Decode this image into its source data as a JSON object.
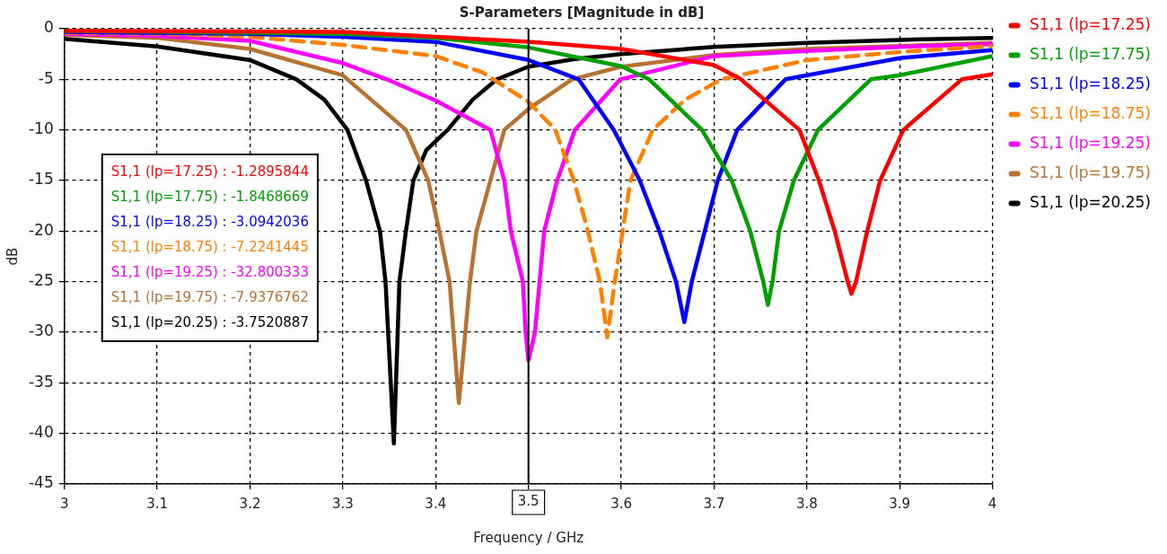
{
  "chart_data": {
    "type": "line",
    "title": "S-Parameters [Magnitude in dB]",
    "xlabel": "Frequency / GHz",
    "ylabel": "dB",
    "xlim": [
      3,
      4
    ],
    "xticks": [
      3,
      3.1,
      3.2,
      3.3,
      3.4,
      3.5,
      3.6,
      3.7,
      3.8,
      3.9,
      4
    ],
    "ylim": [
      -45,
      0
    ],
    "yticks": [
      -45,
      -40,
      -35,
      -30,
      -25,
      -20,
      -15,
      -10,
      -5,
      0
    ],
    "grid": true,
    "legend": "right",
    "marker": "none",
    "ref_lines": [
      {
        "axis": "x",
        "value": 3.5,
        "label": "3.5",
        "color": "#000000"
      }
    ],
    "annotations": [
      "S1,1 (lp=17.25) : -1.2895844",
      "S1,1 (lp=17.75) : -1.8468669",
      "S1,1 (lp=18.25) : -3.0942036",
      "S1,1 (lp=18.75) : -7.2241445",
      "S1,1 (lp=19.25) : -32.800333",
      "S1,1 (lp=19.75) : -7.9376762",
      "S1,1 (lp=20.25) : -3.7520887"
    ],
    "series": [
      {
        "name": "S1,1 (lp=17.25)",
        "color": "#ff0000",
        "line_style": "solid",
        "x": [
          3.0,
          3.3,
          3.5,
          3.6,
          3.7,
          3.729,
          3.792,
          3.813,
          3.83,
          3.844,
          3.848,
          3.853,
          3.865,
          3.879,
          3.904,
          3.967,
          4.0
        ],
        "values": [
          -0.2,
          -0.3,
          -1.29,
          -2.0,
          -3.6,
          -5,
          -10,
          -15,
          -20,
          -25,
          -26.2,
          -25,
          -20,
          -15,
          -10,
          -5,
          -4.5
        ]
      },
      {
        "name": "S1,1 (lp=17.75)",
        "color": "#00a000",
        "line_style": "solid",
        "x": [
          3.0,
          3.3,
          3.4,
          3.5,
          3.6,
          3.63,
          3.687,
          3.719,
          3.739,
          3.753,
          3.758,
          3.763,
          3.77,
          3.786,
          3.812,
          3.869,
          3.9,
          4.0
        ],
        "values": [
          -0.2,
          -0.5,
          -0.9,
          -1.85,
          -3.7,
          -5,
          -10,
          -15,
          -20,
          -25,
          -27.3,
          -25,
          -20,
          -15,
          -10,
          -5,
          -4.6,
          -2.7
        ]
      },
      {
        "name": "S1,1 (lp=18.25)",
        "color": "#0000ff",
        "line_style": "solid",
        "x": [
          3.0,
          3.2,
          3.3,
          3.4,
          3.5,
          3.554,
          3.592,
          3.62,
          3.641,
          3.659,
          3.668,
          3.676,
          3.69,
          3.704,
          3.725,
          3.777,
          3.9,
          4.0
        ],
        "values": [
          -0.3,
          -0.5,
          -0.8,
          -1.3,
          -3.09,
          -5,
          -10,
          -15,
          -20,
          -25,
          -29,
          -25,
          -20,
          -15,
          -10,
          -5,
          -2.9,
          -2.1
        ]
      },
      {
        "name": "S1,1 (lp=18.75)",
        "color": "#ff8000",
        "line_style": "dashed",
        "x": [
          3.0,
          3.1,
          3.2,
          3.3,
          3.4,
          3.45,
          3.5,
          3.529,
          3.549,
          3.564,
          3.577,
          3.585,
          3.593,
          3.61,
          3.634,
          3.669,
          3.708,
          3.8,
          3.9,
          4.0
        ],
        "values": [
          -0.4,
          -0.5,
          -0.8,
          -1.6,
          -2.7,
          -4.3,
          -7.22,
          -10,
          -15,
          -20,
          -25,
          -30.5,
          -25,
          -15,
          -10,
          -7,
          -5,
          -3.1,
          -2.3,
          -1.7
        ]
      },
      {
        "name": "S1,1 (lp=19.25)",
        "color": "#ff00ff",
        "line_style": "solid",
        "x": [
          3.0,
          3.1,
          3.2,
          3.3,
          3.35,
          3.4,
          3.459,
          3.474,
          3.481,
          3.494,
          3.497,
          3.5,
          3.507,
          3.512,
          3.517,
          3.531,
          3.55,
          3.599,
          3.7,
          3.8,
          3.9,
          4.0
        ],
        "values": [
          -0.5,
          -0.7,
          -1.2,
          -3.4,
          -5.1,
          -7.1,
          -10,
          -15,
          -20,
          -25,
          -30,
          -32.8,
          -30,
          -25,
          -20,
          -15,
          -10,
          -5,
          -2.7,
          -2.2,
          -1.8,
          -1.5
        ]
      },
      {
        "name": "S1,1 (lp=19.75)",
        "color": "#b87333",
        "line_style": "solid",
        "x": [
          3.0,
          3.1,
          3.2,
          3.3,
          3.368,
          3.392,
          3.404,
          3.415,
          3.425,
          3.437,
          3.444,
          3.459,
          3.474,
          3.5,
          3.547,
          3.6,
          3.7,
          3.8,
          3.9,
          4.0
        ],
        "values": [
          -0.6,
          -0.9,
          -2.0,
          -4.6,
          -10,
          -15,
          -20,
          -25,
          -37,
          -25,
          -20,
          -15,
          -10,
          -7.94,
          -5,
          -3.75,
          -2.6,
          -2.0,
          -1.7,
          -1.4
        ]
      },
      {
        "name": "S1,1 (lp=20.25)",
        "color": "#000000",
        "line_style": "solid",
        "x": [
          3.0,
          3.1,
          3.2,
          3.25,
          3.28,
          3.305,
          3.325,
          3.34,
          3.346,
          3.355,
          3.361,
          3.368,
          3.376,
          3.39,
          3.413,
          3.44,
          3.466,
          3.5,
          3.55,
          3.6,
          3.7,
          3.8,
          3.9,
          4.0
        ],
        "values": [
          -1.0,
          -1.75,
          -3.1,
          -5,
          -7,
          -10,
          -15,
          -20,
          -25,
          -41,
          -25,
          -20,
          -15,
          -12,
          -10,
          -7,
          -5,
          -3.75,
          -3,
          -2.5,
          -1.8,
          -1.4,
          -1.1,
          -0.9
        ]
      }
    ]
  }
}
